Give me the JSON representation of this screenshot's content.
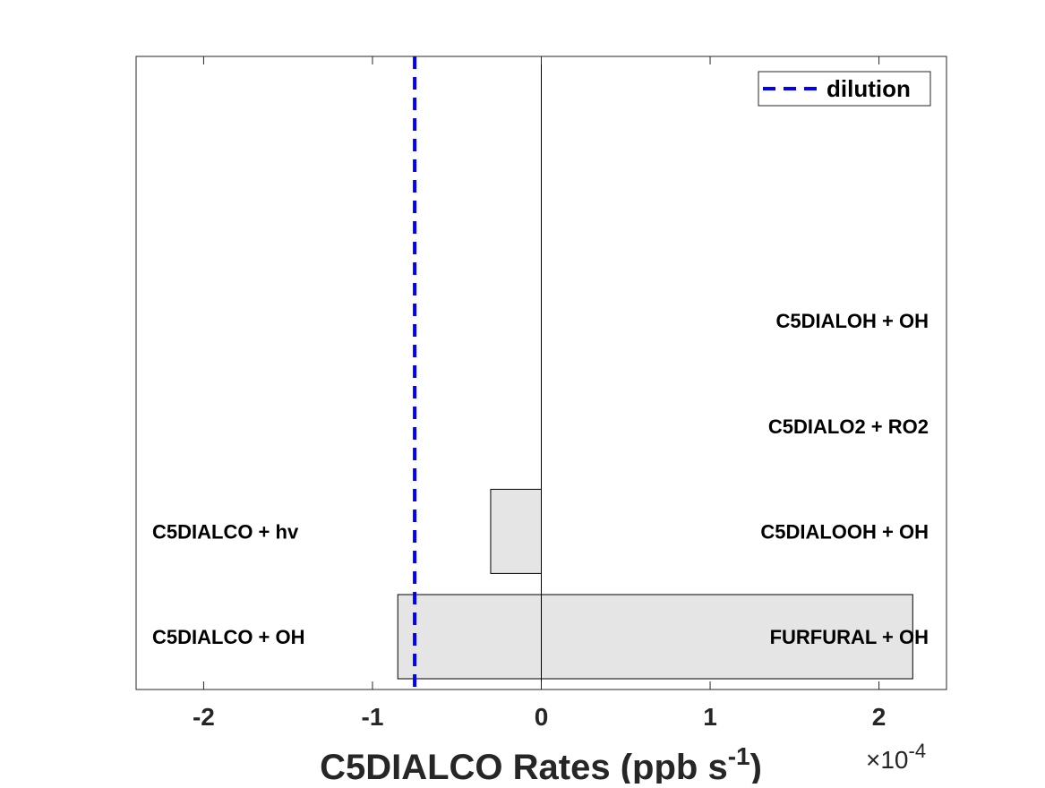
{
  "chart_data": {
    "type": "bar",
    "orientation": "horizontal",
    "title": "",
    "xlabel": "C5DIALCO Rates (ppb s",
    "xlabel_superscript": "-1",
    "xlabel_suffix": ")",
    "ylabel": "",
    "x_multiplier_text": "×10",
    "x_multiplier_exponent": "-4",
    "xlim": [
      -2.4,
      2.4
    ],
    "xticks": [
      -2,
      -1,
      0,
      1,
      2
    ],
    "xtick_labels": [
      "-2",
      "-1",
      "0",
      "1",
      "2"
    ],
    "grid": false,
    "legend_position": "top-right",
    "legend": [
      {
        "label": "dilution",
        "color": "#0000ff",
        "style": "dashed"
      }
    ],
    "dilution_value": -0.75,
    "rows": [
      {
        "loss_label": "C5DIALCO + OH",
        "production_label": "FURFURAL + OH",
        "loss": -0.85,
        "production": 2.2
      },
      {
        "loss_label": "C5DIALCO + hv",
        "production_label": "C5DIALOOH + OH",
        "loss": -0.3,
        "production": 0
      },
      {
        "loss_label": "",
        "production_label": "C5DIALO2 + RO2",
        "loss": 0,
        "production": 0
      },
      {
        "loss_label": "",
        "production_label": "C5DIALOH + OH",
        "loss": 0,
        "production": 0
      }
    ],
    "bar_color": "#e5e5e5"
  }
}
